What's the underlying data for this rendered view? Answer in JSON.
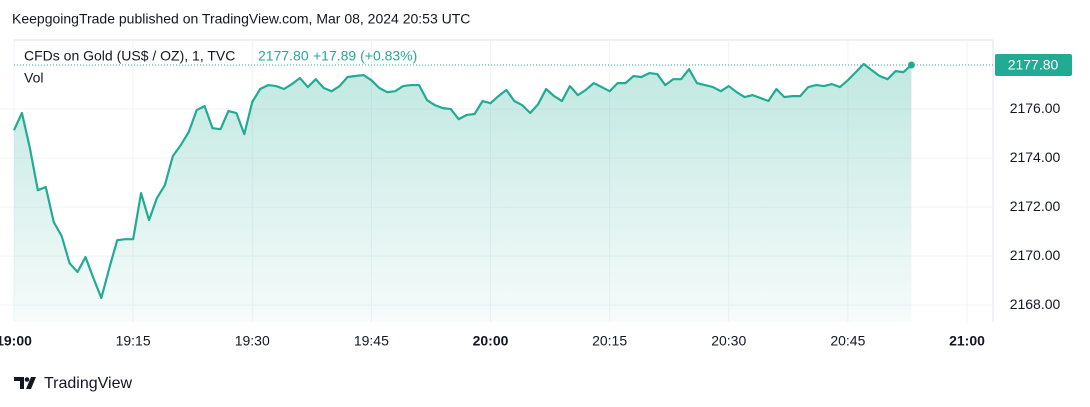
{
  "header": {
    "publisher": "KeepgoingTrade published on TradingView.com, Mar 08, 2024 20:53 UTC"
  },
  "chart_data": {
    "type": "area",
    "symbol": "CFDs on Gold (US$ / OZ), 1, TVC",
    "last_label": "2177.80",
    "change": "+17.89 (+0.83%)",
    "pane_label": "Vol",
    "color": "#22ab94",
    "grid": true,
    "x": [
      "19:00",
      "19:01",
      "19:02",
      "19:03",
      "19:04",
      "19:05",
      "19:06",
      "19:07",
      "19:08",
      "19:09",
      "19:10",
      "19:11",
      "19:12",
      "19:13",
      "19:14",
      "19:15",
      "19:16",
      "19:17",
      "19:18",
      "19:19",
      "19:20",
      "19:21",
      "19:22",
      "19:23",
      "19:24",
      "19:25",
      "19:26",
      "19:27",
      "19:28",
      "19:29",
      "19:30",
      "19:31",
      "19:32",
      "19:33",
      "19:34",
      "19:35",
      "19:36",
      "19:37",
      "19:38",
      "19:39",
      "19:40",
      "19:41",
      "19:42",
      "19:43",
      "19:44",
      "19:45",
      "19:46",
      "19:47",
      "19:48",
      "19:49",
      "19:50",
      "19:51",
      "19:52",
      "19:53",
      "19:54",
      "19:55",
      "19:56",
      "19:57",
      "19:58",
      "19:59",
      "20:00",
      "20:01",
      "20:02",
      "20:03",
      "20:04",
      "20:05",
      "20:06",
      "20:07",
      "20:08",
      "20:09",
      "20:10",
      "20:11",
      "20:12",
      "20:13",
      "20:14",
      "20:15",
      "20:16",
      "20:17",
      "20:18",
      "20:19",
      "20:20",
      "20:21",
      "20:22",
      "20:23",
      "20:24",
      "20:25",
      "20:26",
      "20:27",
      "20:28",
      "20:29",
      "20:30",
      "20:31",
      "20:32",
      "20:33",
      "20:34",
      "20:35",
      "20:36",
      "20:37",
      "20:38",
      "20:39",
      "20:40",
      "20:41",
      "20:42",
      "20:43",
      "20:44",
      "20:45",
      "20:46",
      "20:47",
      "20:48",
      "20:49",
      "20:50",
      "20:51",
      "20:52",
      "20:53"
    ],
    "values": [
      2175.14,
      2175.84,
      2174.41,
      2172.69,
      2172.82,
      2171.39,
      2170.82,
      2169.71,
      2169.35,
      2169.96,
      2169.1,
      2168.29,
      2169.51,
      2170.65,
      2170.69,
      2170.69,
      2172.57,
      2171.47,
      2172.37,
      2172.9,
      2174.08,
      2174.53,
      2175.06,
      2175.96,
      2176.12,
      2175.22,
      2175.18,
      2175.92,
      2175.84,
      2174.98,
      2176.29,
      2176.82,
      2176.98,
      2176.94,
      2176.82,
      2177.02,
      2177.27,
      2176.9,
      2177.22,
      2176.86,
      2176.73,
      2176.94,
      2177.31,
      2177.35,
      2177.39,
      2177.18,
      2176.86,
      2176.69,
      2176.73,
      2176.94,
      2176.98,
      2176.98,
      2176.37,
      2176.16,
      2176.04,
      2176.0,
      2175.59,
      2175.76,
      2175.8,
      2176.33,
      2176.24,
      2176.53,
      2176.78,
      2176.33,
      2176.16,
      2175.84,
      2176.2,
      2176.82,
      2176.53,
      2176.33,
      2176.94,
      2176.57,
      2176.78,
      2177.06,
      2176.9,
      2176.73,
      2177.06,
      2177.06,
      2177.35,
      2177.31,
      2177.47,
      2177.43,
      2176.98,
      2177.22,
      2177.22,
      2177.63,
      2177.06,
      2176.98,
      2176.9,
      2176.73,
      2176.94,
      2176.69,
      2176.49,
      2176.57,
      2176.45,
      2176.33,
      2176.82,
      2176.49,
      2176.53,
      2176.53,
      2176.9,
      2176.98,
      2176.94,
      2177.02,
      2176.9,
      2177.18,
      2177.51,
      2177.84,
      2177.59,
      2177.35,
      2177.22,
      2177.55,
      2177.51,
      2177.8
    ],
    "xlim": [
      "19:00",
      "21:00"
    ],
    "xticks": [
      "19:00",
      "19:15",
      "19:30",
      "19:45",
      "20:00",
      "20:15",
      "20:30",
      "20:45",
      "21:00"
    ],
    "ylim": [
      2167.31,
      2178.82
    ],
    "yticks": [
      {
        "value": 2168,
        "label": "2168.00"
      },
      {
        "value": 2170,
        "label": "2170.00"
      },
      {
        "value": 2172,
        "label": "2172.00"
      },
      {
        "value": 2174,
        "label": "2174.00"
      },
      {
        "value": 2176,
        "label": "2176.00"
      }
    ]
  },
  "footer": {
    "brand": "TradingView"
  }
}
